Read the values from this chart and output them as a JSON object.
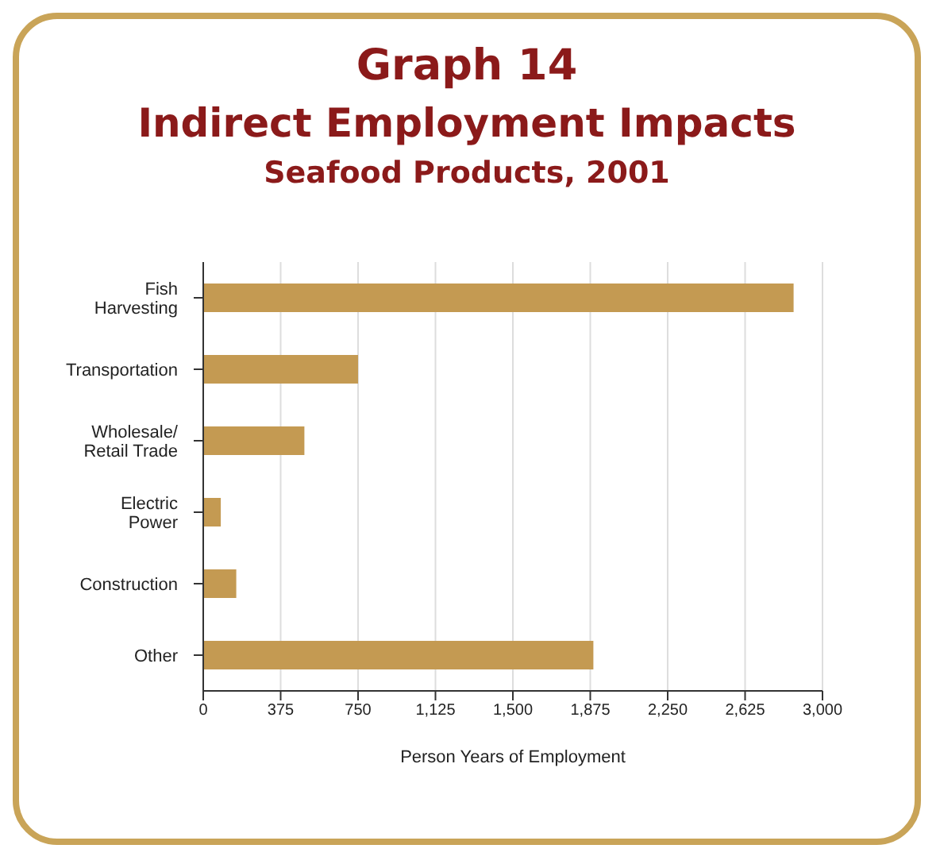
{
  "chart_data": {
    "type": "bar",
    "orientation": "horizontal",
    "title": "Graph 14",
    "subtitle": "Indirect Employment Impacts\nSeafood Products, 2001",
    "xlabel": "Person Years of Employment",
    "categories": [
      "Fish\nHarvesting",
      "Transportation",
      "Wholesale/\nRetail Trade",
      "Electric\nPower",
      "Construction",
      "Other"
    ],
    "values": [
      2860,
      750,
      490,
      85,
      160,
      1890
    ],
    "color": "#c49a52",
    "xlim": [
      0,
      3000
    ],
    "xticks": [
      {
        "value": 0,
        "label": "0"
      },
      {
        "value": 375,
        "label": "375"
      },
      {
        "value": 750,
        "label": "750"
      },
      {
        "value": 1125,
        "label": "1,125"
      },
      {
        "value": 1500,
        "label": "1,500"
      },
      {
        "value": 1875,
        "label": "1,875"
      },
      {
        "value": 2250,
        "label": "2,250"
      },
      {
        "value": 2625,
        "label": "2,625"
      },
      {
        "value": 3000,
        "label": "3,000"
      }
    ],
    "grid": "x"
  }
}
